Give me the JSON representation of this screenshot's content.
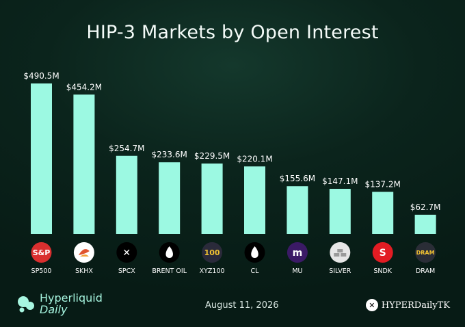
{
  "chart_data": {
    "type": "bar",
    "title": "HIP-3 Markets by Open Interest",
    "categories": [
      "SP500",
      "SKHX",
      "SPCX",
      "BRENT OIL",
      "XYZ100",
      "CL",
      "MU",
      "SILVER",
      "SNDK",
      "DRAM"
    ],
    "values": [
      490.5,
      454.2,
      254.7,
      233.6,
      229.5,
      220.1,
      155.6,
      147.1,
      137.2,
      62.7
    ],
    "data_labels": [
      "$490.5M",
      "$454.2M",
      "$254.7M",
      "$233.6M",
      "$229.5M",
      "$220.1M",
      "$155.6M",
      "$147.1M",
      "$137.2M",
      "$62.7M"
    ],
    "xlabel": "",
    "ylabel": "",
    "ylim": [
      0,
      500
    ],
    "grid": false,
    "bar_color": "#9cf9e2"
  },
  "icons": [
    {
      "name": "sp500-logo-icon",
      "text": "S&P",
      "bg": "#d92f2f",
      "fg": "#ffffff"
    },
    {
      "name": "skhx-logo-icon",
      "text": "",
      "bg": "#ffffff",
      "fg": "#e0532d"
    },
    {
      "name": "spcx-logo-icon",
      "text": "✕",
      "bg": "#000000",
      "fg": "#ffffff"
    },
    {
      "name": "brent-oil-drop-icon",
      "text": "",
      "bg": "#000000",
      "fg": "#ffffff"
    },
    {
      "name": "xyz100-logo-icon",
      "text": "100",
      "bg": "#2a2a3a",
      "fg": "#f1c232"
    },
    {
      "name": "cl-oil-drop-icon",
      "text": "",
      "bg": "#000000",
      "fg": "#ffffff"
    },
    {
      "name": "mu-logo-icon",
      "text": "m",
      "bg": "#3b1a66",
      "fg": "#ffffff"
    },
    {
      "name": "silver-bars-icon",
      "text": "",
      "bg": "#e6e6e6",
      "fg": "#9a9a9a"
    },
    {
      "name": "sndk-logo-icon",
      "text": "S",
      "bg": "#e21c23",
      "fg": "#ffffff"
    },
    {
      "name": "dram-logo-icon",
      "text": "DRAM",
      "bg": "#2a2d36",
      "fg": "#f1c232"
    }
  ],
  "footer": {
    "brand_line1": "Hyperliquid",
    "brand_line2": "Daily",
    "date": "August 11, 2026",
    "handle": "HYPERDailyTK"
  },
  "colors": {
    "accent": "#9cf9e2",
    "brand_text": "#a7f6e0"
  }
}
